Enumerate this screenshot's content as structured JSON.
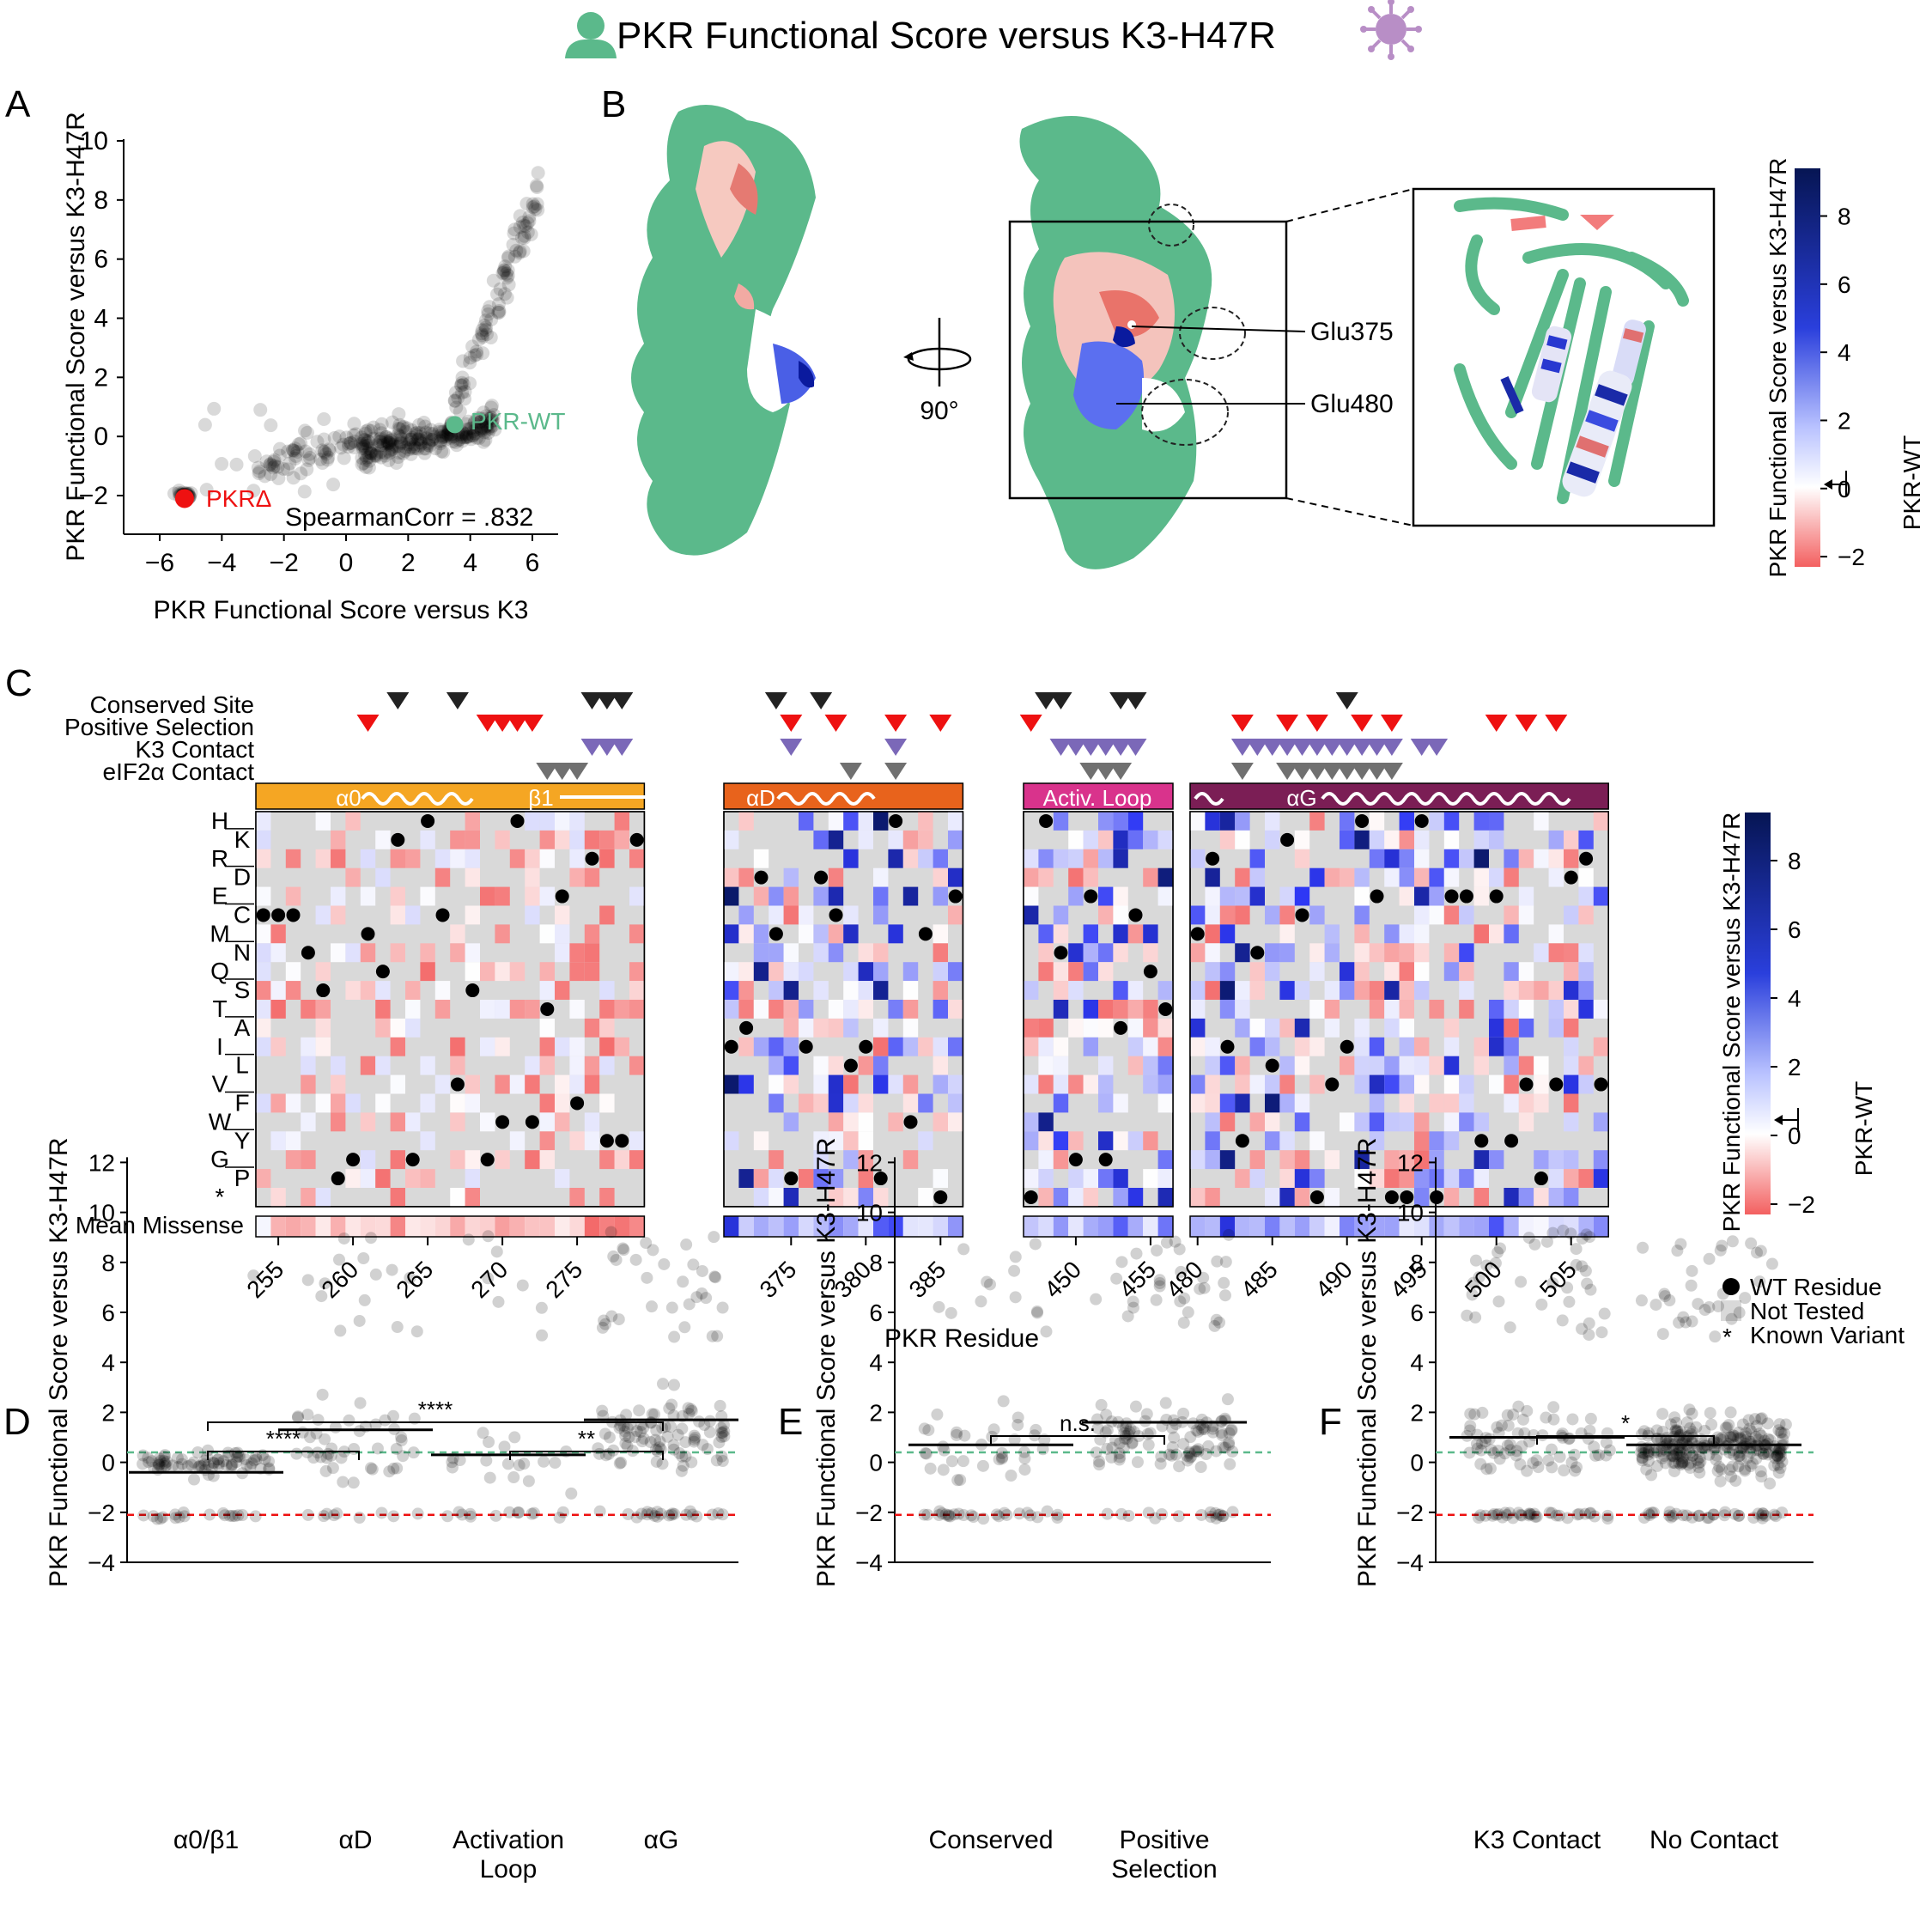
{
  "title": "PKR Functional Score versus K3-H47R",
  "colors": {
    "pkr_green": "#5bb98b",
    "virus_purple": "#b88ec6",
    "red": "#ee1111",
    "blue_dark": "#081a5e",
    "alpha0_bar": "#f5a623",
    "alphaD_bar": "#e8631c",
    "activ_bar": "#d9338c",
    "alphaG_bar": "#7b1e55",
    "not_tested": "#d9d9d9",
    "k3_triangle": "#7b68b8",
    "eif2a_triangle": "#707070",
    "conserved_triangle": "#222222"
  },
  "panels": {
    "A": {
      "letter": "A",
      "xlabel": "PKR Functional Score versus K3",
      "ylabel": "PKR Functional Score versus K3-H47R",
      "xticks": [
        "−6",
        "−4",
        "−2",
        "0",
        "2",
        "4",
        "6"
      ],
      "yticks": [
        "−2",
        "0",
        "2",
        "4",
        "6",
        "8",
        "10"
      ],
      "label_wt": "PKR-WT",
      "label_null": "PKRΔ",
      "stat": "SpearmanCorr = .832"
    },
    "B": {
      "letter": "B",
      "rotation": "90°",
      "labels": [
        "Glu375",
        "Glu480"
      ],
      "colorbar_label": "PKR Functional Score versus K3-H47R",
      "colorbar_ticks": [
        "8",
        "6",
        "4",
        "2",
        "0",
        "−2"
      ],
      "colorbar_ref": "PKR-WT"
    },
    "C": {
      "letter": "C",
      "track_labels": [
        "Conserved Site",
        "Positive Selection",
        "K3 Contact",
        "eIF2α Contact"
      ],
      "region_labels": [
        "α0",
        "β1",
        "αD",
        "Activ. Loop",
        "αG"
      ],
      "amino_acids": [
        "H",
        "K",
        "R",
        "D",
        "E",
        "C",
        "M",
        "N",
        "Q",
        "S",
        "T",
        "A",
        "I",
        "L",
        "V",
        "F",
        "W",
        "Y",
        "G",
        "P",
        "*"
      ],
      "mean_label": "Mean Missense",
      "xlabel": "PKR Residue",
      "xticks": [
        "255",
        "260",
        "265",
        "270",
        "275",
        "375",
        "380",
        "385",
        "450",
        "455",
        "480",
        "485",
        "490",
        "495",
        "500",
        "505"
      ],
      "colorbar_label": "PKR Functional Score versus K3-H47R",
      "colorbar_ticks": [
        "8",
        "6",
        "4",
        "2",
        "0",
        "−2"
      ],
      "colorbar_ref": "PKR-WT",
      "legend": [
        "WT Residue",
        "Not Tested",
        "Known Variant"
      ]
    },
    "D": {
      "letter": "D",
      "ylabel": "PKR Functional Score versus K3-H47R",
      "yticks": [
        "−4",
        "−2",
        "0",
        "2",
        "4",
        "6",
        "8",
        "10",
        "12"
      ],
      "groups": [
        "α0/β1",
        "αD",
        "Activation",
        "αG"
      ],
      "group2_line2": "Loop",
      "sig": [
        "****",
        "****",
        "**"
      ]
    },
    "E": {
      "letter": "E",
      "ylabel": "PKR Functional Score versus K3-H47R",
      "yticks": [
        "−4",
        "−2",
        "0",
        "2",
        "4",
        "6",
        "8",
        "10",
        "12"
      ],
      "groups": [
        "Conserved",
        "Positive"
      ],
      "group1_line2": "Selection",
      "sig": [
        "n.s."
      ]
    },
    "F": {
      "letter": "F",
      "ylabel": "PKR Functional Score versus K3-H47R",
      "yticks": [
        "−4",
        "−2",
        "0",
        "2",
        "4",
        "6",
        "8",
        "10",
        "12"
      ],
      "groups": [
        "K3 Contact",
        "No Contact"
      ],
      "sig": [
        "*"
      ]
    }
  },
  "chart_data": [
    {
      "type": "scatter",
      "panel": "A",
      "xlabel": "PKR Functional Score versus K3",
      "ylabel": "PKR Functional Score versus K3-H47R",
      "xlim": [
        -6,
        7
      ],
      "ylim": [
        -3,
        10
      ],
      "highlight": [
        {
          "name": "PKR-WT",
          "x": 3.5,
          "y": 0.4
        },
        {
          "name": "PKRΔ",
          "x": -5.2,
          "y": -2.1
        }
      ],
      "spearman": 0.832
    },
    {
      "type": "heatmap",
      "panel": "C",
      "rows": [
        "H",
        "K",
        "R",
        "D",
        "E",
        "C",
        "M",
        "N",
        "Q",
        "S",
        "T",
        "A",
        "I",
        "L",
        "V",
        "F",
        "W",
        "Y",
        "G",
        "P",
        "*"
      ],
      "blocks": [
        {
          "name": "α0/β1",
          "start": 254,
          "end": 279
        },
        {
          "name": "αD",
          "start": 371,
          "end": 386
        },
        {
          "name": "Activ. Loop",
          "start": 447,
          "end": 456
        },
        {
          "name": "αG",
          "start": 480,
          "end": 507
        }
      ],
      "color_range": [
        -2,
        9
      ],
      "conserved": [
        263,
        267,
        276,
        277,
        278,
        374,
        377,
        448,
        449,
        453,
        454,
        478,
        490
      ],
      "positive_selection": [
        261,
        269,
        270,
        271,
        272,
        375,
        378,
        382,
        385,
        446,
        447,
        483,
        486,
        488,
        491,
        493,
        500,
        502,
        504
      ],
      "k3_contact": [
        276,
        277,
        278,
        375,
        382,
        449,
        450,
        451,
        452,
        453,
        454,
        483,
        484,
        485,
        486,
        487,
        488,
        489,
        490,
        491,
        492,
        493,
        495,
        496
      ],
      "eif2a_contact": [
        273,
        274,
        275,
        379,
        382,
        451,
        452,
        453,
        483,
        486,
        487,
        488,
        489,
        490,
        491,
        492,
        493
      ]
    },
    {
      "type": "scatter",
      "panel": "D",
      "ylim": [
        -4,
        12
      ],
      "categories": [
        "α0/β1",
        "αD",
        "Activation Loop",
        "αG"
      ],
      "means": [
        -0.4,
        1.3,
        0.3,
        1.7
      ],
      "wt_line": 0.4,
      "null_line": -2.1
    },
    {
      "type": "scatter",
      "panel": "E",
      "ylim": [
        -4,
        12
      ],
      "categories": [
        "Conserved",
        "Positive Selection"
      ],
      "means": [
        0.7,
        1.6
      ],
      "wt_line": 0.4,
      "null_line": -2.1
    },
    {
      "type": "scatter",
      "panel": "F",
      "ylim": [
        -4,
        12
      ],
      "categories": [
        "K3 Contact",
        "No Contact"
      ],
      "means": [
        1.0,
        0.7
      ],
      "wt_line": 0.4,
      "null_line": -2.1
    }
  ]
}
